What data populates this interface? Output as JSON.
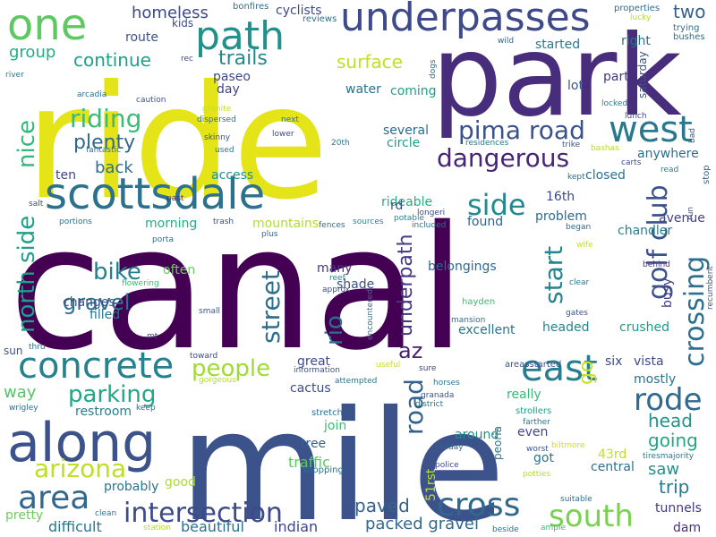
{
  "words": [
    {
      "text": "canal",
      "color": "#440154"
    },
    {
      "text": "ride",
      "color": "#e5e419"
    },
    {
      "text": "mile",
      "color": "#3b528b"
    },
    {
      "text": "park",
      "color": "#472d7b"
    },
    {
      "text": "scottsdale",
      "color": "#2c728e"
    },
    {
      "text": "underpasses",
      "color": "#3e4a89"
    },
    {
      "text": "along",
      "color": "#3b528b"
    },
    {
      "text": "one",
      "color": "#5ec962"
    },
    {
      "text": "path",
      "color": "#21918c"
    },
    {
      "text": "west",
      "color": "#2a788e"
    },
    {
      "text": "east",
      "color": "#287d8e"
    },
    {
      "text": "concrete",
      "color": "#26828e"
    },
    {
      "text": "area",
      "color": "#31688e"
    },
    {
      "text": "arizona",
      "color": "#bddf26"
    },
    {
      "text": "intersection",
      "color": "#3e4989"
    },
    {
      "text": "south",
      "color": "#7ad151"
    },
    {
      "text": "cross",
      "color": "#31688e"
    },
    {
      "text": "rode",
      "color": "#306a8e"
    },
    {
      "text": "crossing",
      "color": "#2d708e"
    },
    {
      "text": "golf club",
      "color": "#3b528b"
    },
    {
      "text": "dangerous",
      "color": "#482475"
    },
    {
      "text": "pima road",
      "color": "#3b528b"
    },
    {
      "text": "road",
      "color": "#33638d"
    },
    {
      "text": "side",
      "color": "#23898e"
    },
    {
      "text": "north side",
      "color": "#1f9e89"
    },
    {
      "text": "nice",
      "color": "#35b779"
    },
    {
      "text": "riding",
      "color": "#3bbb75"
    },
    {
      "text": "plenty",
      "color": "#31688e"
    },
    {
      "text": "bike",
      "color": "#277f8e"
    },
    {
      "text": "gravel",
      "color": "#2c718e"
    },
    {
      "text": "street",
      "color": "#2e6e8e"
    },
    {
      "text": "start",
      "color": "#25848e"
    },
    {
      "text": "people",
      "color": "#a0da39"
    },
    {
      "text": "parking",
      "color": "#22a785"
    },
    {
      "text": "trails",
      "color": "#23898e"
    },
    {
      "text": "continue",
      "color": "#1fa188"
    },
    {
      "text": "surface",
      "color": "#c2df23"
    },
    {
      "text": "group",
      "color": "#25ac82"
    },
    {
      "text": "homeless",
      "color": "#3e4989"
    },
    {
      "text": "two",
      "color": "#34618d"
    },
    {
      "text": "back",
      "color": "#2f6c8e"
    },
    {
      "text": "rio",
      "color": "#2e6f8e"
    },
    {
      "text": "az",
      "color": "#482173"
    },
    {
      "text": "underpath",
      "color": "#443983"
    },
    {
      "text": "way",
      "color": "#52c569"
    },
    {
      "text": "head",
      "color": "#1f958b"
    },
    {
      "text": "going",
      "color": "#22a785"
    },
    {
      "text": "trip",
      "color": "#2a788e"
    },
    {
      "text": "saw",
      "color": "#21918c"
    },
    {
      "text": "paved",
      "color": "#34618d"
    },
    {
      "text": "packed gravel",
      "color": "#31688e"
    },
    {
      "text": "restroom",
      "color": "#277e8e"
    },
    {
      "text": "pretty",
      "color": "#6ccd5a"
    },
    {
      "text": "difficult",
      "color": "#2a768e"
    },
    {
      "text": "beautiful",
      "color": "#2d718e"
    },
    {
      "text": "indian",
      "color": "#3f4788"
    },
    {
      "text": "good",
      "color": "#addc30"
    },
    {
      "text": "probably",
      "color": "#2c738e"
    },
    {
      "text": "traffic",
      "color": "#5ec962"
    },
    {
      "text": "tree",
      "color": "#33638d"
    },
    {
      "text": "join",
      "color": "#3bbb75"
    },
    {
      "text": "shopping",
      "color": "#2e6f8e"
    },
    {
      "text": "great",
      "color": "#3e4c8a"
    },
    {
      "text": "cactus",
      "color": "#3d4e8a"
    },
    {
      "text": "stretch",
      "color": "#2c718e"
    },
    {
      "text": "excellent",
      "color": "#2a768e"
    },
    {
      "text": "belongings",
      "color": "#31688e"
    },
    {
      "text": "several",
      "color": "#306a8e"
    },
    {
      "text": "circle",
      "color": "#1fa088"
    },
    {
      "text": "rideable",
      "color": "#27ad81"
    },
    {
      "text": "found",
      "color": "#33628d"
    },
    {
      "text": "problem",
      "color": "#2f6c8e"
    },
    {
      "text": "chandler",
      "color": "#26818e"
    },
    {
      "text": "closed",
      "color": "#2c728e"
    },
    {
      "text": "avenue",
      "color": "#414487"
    },
    {
      "text": "anywhere",
      "color": "#2d708e"
    },
    {
      "text": "busy",
      "color": "#424086"
    },
    {
      "text": "mostly",
      "color": "#2c738e"
    },
    {
      "text": "vista",
      "color": "#3e4a89"
    },
    {
      "text": "six",
      "color": "#3e4989"
    },
    {
      "text": "go",
      "color": "#c8e020"
    },
    {
      "text": "really",
      "color": "#38b977"
    },
    {
      "text": "even",
      "color": "#404588"
    },
    {
      "text": "got",
      "color": "#2c728e"
    },
    {
      "text": "around",
      "color": "#228c8d"
    },
    {
      "text": "central",
      "color": "#2c718e"
    },
    {
      "text": "43rd",
      "color": "#c2df23"
    },
    {
      "text": "51rst",
      "color": "#c2df23"
    },
    {
      "text": "peoria",
      "color": "#2a768e"
    },
    {
      "text": "tunnels",
      "color": "#453882"
    },
    {
      "text": "dam",
      "color": "#46327e"
    },
    {
      "text": "filled",
      "color": "#2b748e"
    },
    {
      "text": "changes",
      "color": "#3e4c8a"
    },
    {
      "text": "often",
      "color": "#69cd5b"
    },
    {
      "text": "shade",
      "color": "#3c4f8a"
    },
    {
      "text": "many",
      "color": "#453781"
    },
    {
      "text": "mountains",
      "color": "#b0dd2f"
    },
    {
      "text": "morning",
      "color": "#27ad81"
    },
    {
      "text": "access",
      "color": "#21918c"
    },
    {
      "text": "day",
      "color": "#414487"
    },
    {
      "text": "paseo",
      "color": "#3e4a89"
    },
    {
      "text": "route",
      "color": "#3b528b"
    },
    {
      "text": "kids",
      "color": "#3e4989"
    },
    {
      "text": "water",
      "color": "#2c728e"
    },
    {
      "text": "coming",
      "color": "#1fa188"
    },
    {
      "text": "started",
      "color": "#2a788e"
    },
    {
      "text": "right",
      "color": "#2c738e"
    },
    {
      "text": "lot",
      "color": "#39568c"
    },
    {
      "text": "part",
      "color": "#453882"
    },
    {
      "text": "saturday",
      "color": "#3b528b"
    },
    {
      "text": "ten",
      "color": "#414487"
    },
    {
      "text": "16th",
      "color": "#3e4989"
    },
    {
      "text": "rd",
      "color": "#3e4a89"
    },
    {
      "text": "headed",
      "color": "#26828e"
    },
    {
      "text": "crushed",
      "color": "#1f9a8a"
    },
    {
      "text": "cyclists",
      "color": "#3e4989"
    },
    {
      "text": "bonfires",
      "color": "#2c738e"
    },
    {
      "text": "reviews",
      "color": "#2c718e"
    },
    {
      "text": "properties",
      "color": "#2f6c8e"
    },
    {
      "text": "kept",
      "color": "#2f6b8e"
    },
    {
      "text": "bashas",
      "color": "#b5de2b"
    },
    {
      "text": "trike",
      "color": "#3b528b"
    },
    {
      "text": "carts",
      "color": "#3d4e8a"
    },
    {
      "text": "read",
      "color": "#26818e"
    },
    {
      "text": "stop",
      "color": "#33638d"
    },
    {
      "text": "bad",
      "color": "#31668e"
    },
    {
      "text": "lucky",
      "color": "#b5de2b"
    },
    {
      "text": "trying",
      "color": "#2c728e"
    },
    {
      "text": "bushes",
      "color": "#2d708e"
    },
    {
      "text": "wild",
      "color": "#33638d"
    },
    {
      "text": "dogs",
      "color": "#2c718e"
    },
    {
      "text": "residences",
      "color": "#2a788e"
    },
    {
      "text": "locked",
      "color": "#26828e"
    },
    {
      "text": "lunch",
      "color": "#3e4989"
    },
    {
      "text": "began",
      "color": "#31688e"
    },
    {
      "text": "wife",
      "color": "#c8e020"
    },
    {
      "text": "behind",
      "color": "#46327e"
    },
    {
      "text": "clear",
      "color": "#2c718e"
    },
    {
      "text": "gates",
      "color": "#3b528b"
    },
    {
      "text": "run",
      "color": "#3e4a89"
    },
    {
      "text": "recumbent",
      "color": "#3b528b"
    },
    {
      "text": "potable",
      "color": "#26828e"
    },
    {
      "text": "included",
      "color": "#2c718e"
    },
    {
      "text": "longeri",
      "color": "#3e4989"
    },
    {
      "text": "hayden",
      "color": "#3bbb75"
    },
    {
      "text": "mansion",
      "color": "#2f6c8e"
    },
    {
      "text": "sources",
      "color": "#24868e"
    },
    {
      "text": "fences",
      "color": "#2d708e"
    },
    {
      "text": "areasstarted",
      "color": "#3b528b"
    },
    {
      "text": "sure",
      "color": "#3e4989"
    },
    {
      "text": "horses",
      "color": "#2a788e"
    },
    {
      "text": "granada",
      "color": "#3b528b"
    },
    {
      "text": "district",
      "color": "#2c728e"
    },
    {
      "text": "strollers",
      "color": "#1fa188"
    },
    {
      "text": "worst",
      "color": "#3b528b"
    },
    {
      "text": "farther",
      "color": "#2c718e"
    },
    {
      "text": "biltmore",
      "color": "#c8e020"
    },
    {
      "text": "tiresmajority",
      "color": "#2a788e"
    },
    {
      "text": "today",
      "color": "#31688e"
    },
    {
      "text": "police",
      "color": "#3e4a89"
    },
    {
      "text": "potties",
      "color": "#b5de2b"
    },
    {
      "text": "suitable",
      "color": "#2c718e"
    },
    {
      "text": "ample",
      "color": "#3bbb75"
    },
    {
      "text": "beside",
      "color": "#2c728e"
    },
    {
      "text": "station",
      "color": "#b5de2b"
    },
    {
      "text": "clean",
      "color": "#2a788e"
    },
    {
      "text": "thru",
      "color": "#2c718e"
    },
    {
      "text": "wrigley",
      "color": "#2f6c8e"
    },
    {
      "text": "keep",
      "color": "#31688e"
    },
    {
      "text": "toward",
      "color": "#3e4989"
    },
    {
      "text": "gorgeous",
      "color": "#b5de2b"
    },
    {
      "text": "information",
      "color": "#3b528b"
    },
    {
      "text": "attempted",
      "color": "#2c728e"
    },
    {
      "text": "useful",
      "color": "#c8e020"
    },
    {
      "text": "encountered",
      "color": "#2c718e"
    },
    {
      "text": "approx",
      "color": "#3e4a89"
    },
    {
      "text": "reef",
      "color": "#26828e"
    },
    {
      "text": "plus",
      "color": "#2f6c8e"
    },
    {
      "text": "small",
      "color": "#3b528b"
    },
    {
      "text": "mt",
      "color": "#3e4989"
    },
    {
      "text": "flowering",
      "color": "#3bbb75"
    },
    {
      "text": "porta",
      "color": "#2c728e"
    },
    {
      "text": "trash",
      "color": "#3e4a89"
    },
    {
      "text": "past",
      "color": "#46327e"
    },
    {
      "text": "portions",
      "color": "#2c718e"
    },
    {
      "text": "salt",
      "color": "#3e4989"
    },
    {
      "text": "used",
      "color": "#2a788e"
    },
    {
      "text": "skinny",
      "color": "#3b528b"
    },
    {
      "text": "fantastic",
      "color": "#2c718e"
    },
    {
      "text": "dispersed",
      "color": "#2c728e"
    },
    {
      "text": "granite",
      "color": "#c8e020"
    },
    {
      "text": "caution",
      "color": "#3b528b"
    },
    {
      "text": "next",
      "color": "#2c718e"
    },
    {
      "text": "lower",
      "color": "#3e4989"
    },
    {
      "text": "20th",
      "color": "#2a788e"
    },
    {
      "text": "arcadia",
      "color": "#2c718e"
    },
    {
      "text": "rec",
      "color": "#3e4a89"
    },
    {
      "text": "river",
      "color": "#2a788e"
    },
    {
      "text": "sun",
      "color": "#3b528b"
    }
  ]
}
